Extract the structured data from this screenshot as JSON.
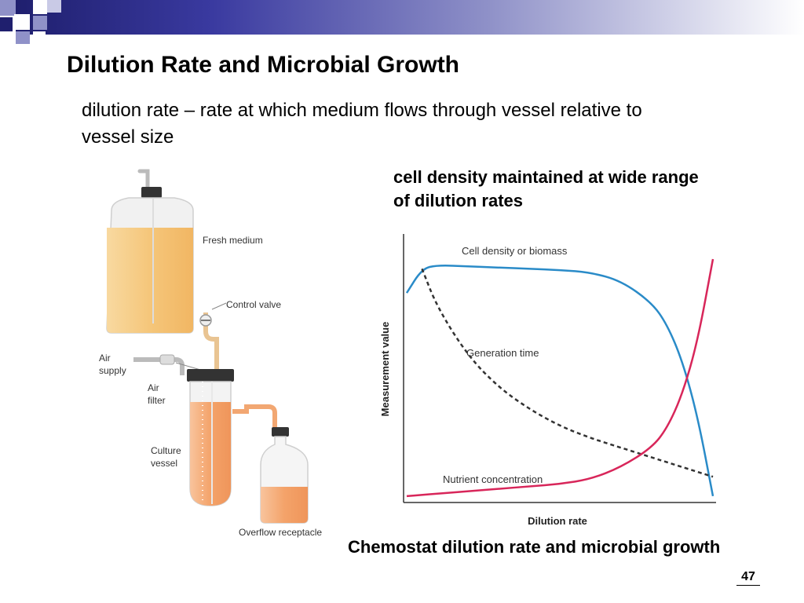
{
  "slide": {
    "title": "Dilution Rate and Microbial Growth",
    "bullet": "dilution rate – rate at which medium flows through vessel relative to vessel size",
    "chart_caption": "cell density maintained at wide range of dilution rates",
    "figure_caption": "Chemostat dilution rate and microbial growth",
    "page_number": "47"
  },
  "theme": {
    "band_colors": [
      "#1f1f6e",
      "#3a3aa0",
      "#8f91c8",
      "#ffffff"
    ],
    "medium_color": "#f5c67a",
    "culture_color": "#f4a36a"
  },
  "diagram": {
    "labels": {
      "fresh_medium": "Fresh medium",
      "control_valve": "Control valve",
      "air_supply_line1": "Air",
      "air_supply_line2": "supply",
      "air_filter_line1": "Air",
      "air_filter_line2": "filter",
      "culture_vessel_line1": "Culture",
      "culture_vessel_line2": "vessel",
      "overflow_receptacle": "Overflow receptacle"
    }
  },
  "chart_data": {
    "type": "line",
    "xlabel": "Dilution rate",
    "ylabel": "Measurement value",
    "grid": false,
    "x": [
      0.0,
      0.05,
      0.1,
      0.2,
      0.3,
      0.4,
      0.5,
      0.6,
      0.7,
      0.8,
      0.85,
      0.9,
      0.95,
      1.0
    ],
    "series": [
      {
        "name": "Cell density or biomass",
        "color": "#2a8bc8",
        "style": "solid",
        "values": [
          0.86,
          0.96,
          0.975,
          0.97,
          0.965,
          0.96,
          0.955,
          0.945,
          0.91,
          0.82,
          0.73,
          0.58,
          0.35,
          0.02
        ]
      },
      {
        "name": "Generation time",
        "color": "#333333",
        "style": "dashed",
        "values": [
          null,
          0.96,
          0.8,
          0.6,
          0.47,
          0.38,
          0.31,
          0.26,
          0.22,
          0.18,
          0.16,
          0.14,
          0.12,
          0.1
        ]
      },
      {
        "name": "Nutrient concentration",
        "color": "#d8265a",
        "style": "solid",
        "values": [
          0.02,
          0.025,
          0.03,
          0.04,
          0.05,
          0.06,
          0.07,
          0.09,
          0.14,
          0.22,
          0.3,
          0.44,
          0.66,
          1.0
        ]
      }
    ]
  }
}
